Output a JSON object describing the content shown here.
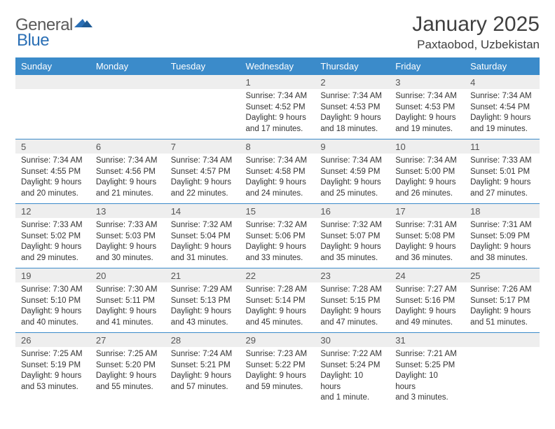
{
  "brand": {
    "word1": "General",
    "word2": "Blue",
    "text_color": "#5a5a5a",
    "accent_color": "#2a6fb5"
  },
  "title": {
    "month": "January 2025",
    "location": "Paxtaobod, Uzbekistan"
  },
  "style": {
    "header_bg": "#3b8bca",
    "header_fg": "#ffffff",
    "daynum_bg": "#eeeeee",
    "row_border": "#3b8bca",
    "body_bg": "#ffffff",
    "text_color": "#333333",
    "title_fontsize": 30,
    "location_fontsize": 17,
    "dayhead_fontsize": 13,
    "cell_fontsize": 11.5
  },
  "day_headers": [
    "Sunday",
    "Monday",
    "Tuesday",
    "Wednesday",
    "Thursday",
    "Friday",
    "Saturday"
  ],
  "weeks": [
    [
      {
        "n": "",
        "lines": []
      },
      {
        "n": "",
        "lines": []
      },
      {
        "n": "",
        "lines": []
      },
      {
        "n": "1",
        "lines": [
          "Sunrise: 7:34 AM",
          "Sunset: 4:52 PM",
          "Daylight: 9 hours",
          "and 17 minutes."
        ]
      },
      {
        "n": "2",
        "lines": [
          "Sunrise: 7:34 AM",
          "Sunset: 4:53 PM",
          "Daylight: 9 hours",
          "and 18 minutes."
        ]
      },
      {
        "n": "3",
        "lines": [
          "Sunrise: 7:34 AM",
          "Sunset: 4:53 PM",
          "Daylight: 9 hours",
          "and 19 minutes."
        ]
      },
      {
        "n": "4",
        "lines": [
          "Sunrise: 7:34 AM",
          "Sunset: 4:54 PM",
          "Daylight: 9 hours",
          "and 19 minutes."
        ]
      }
    ],
    [
      {
        "n": "5",
        "lines": [
          "Sunrise: 7:34 AM",
          "Sunset: 4:55 PM",
          "Daylight: 9 hours",
          "and 20 minutes."
        ]
      },
      {
        "n": "6",
        "lines": [
          "Sunrise: 7:34 AM",
          "Sunset: 4:56 PM",
          "Daylight: 9 hours",
          "and 21 minutes."
        ]
      },
      {
        "n": "7",
        "lines": [
          "Sunrise: 7:34 AM",
          "Sunset: 4:57 PM",
          "Daylight: 9 hours",
          "and 22 minutes."
        ]
      },
      {
        "n": "8",
        "lines": [
          "Sunrise: 7:34 AM",
          "Sunset: 4:58 PM",
          "Daylight: 9 hours",
          "and 24 minutes."
        ]
      },
      {
        "n": "9",
        "lines": [
          "Sunrise: 7:34 AM",
          "Sunset: 4:59 PM",
          "Daylight: 9 hours",
          "and 25 minutes."
        ]
      },
      {
        "n": "10",
        "lines": [
          "Sunrise: 7:34 AM",
          "Sunset: 5:00 PM",
          "Daylight: 9 hours",
          "and 26 minutes."
        ]
      },
      {
        "n": "11",
        "lines": [
          "Sunrise: 7:33 AM",
          "Sunset: 5:01 PM",
          "Daylight: 9 hours",
          "and 27 minutes."
        ]
      }
    ],
    [
      {
        "n": "12",
        "lines": [
          "Sunrise: 7:33 AM",
          "Sunset: 5:02 PM",
          "Daylight: 9 hours",
          "and 29 minutes."
        ]
      },
      {
        "n": "13",
        "lines": [
          "Sunrise: 7:33 AM",
          "Sunset: 5:03 PM",
          "Daylight: 9 hours",
          "and 30 minutes."
        ]
      },
      {
        "n": "14",
        "lines": [
          "Sunrise: 7:32 AM",
          "Sunset: 5:04 PM",
          "Daylight: 9 hours",
          "and 31 minutes."
        ]
      },
      {
        "n": "15",
        "lines": [
          "Sunrise: 7:32 AM",
          "Sunset: 5:06 PM",
          "Daylight: 9 hours",
          "and 33 minutes."
        ]
      },
      {
        "n": "16",
        "lines": [
          "Sunrise: 7:32 AM",
          "Sunset: 5:07 PM",
          "Daylight: 9 hours",
          "and 35 minutes."
        ]
      },
      {
        "n": "17",
        "lines": [
          "Sunrise: 7:31 AM",
          "Sunset: 5:08 PM",
          "Daylight: 9 hours",
          "and 36 minutes."
        ]
      },
      {
        "n": "18",
        "lines": [
          "Sunrise: 7:31 AM",
          "Sunset: 5:09 PM",
          "Daylight: 9 hours",
          "and 38 minutes."
        ]
      }
    ],
    [
      {
        "n": "19",
        "lines": [
          "Sunrise: 7:30 AM",
          "Sunset: 5:10 PM",
          "Daylight: 9 hours",
          "and 40 minutes."
        ]
      },
      {
        "n": "20",
        "lines": [
          "Sunrise: 7:30 AM",
          "Sunset: 5:11 PM",
          "Daylight: 9 hours",
          "and 41 minutes."
        ]
      },
      {
        "n": "21",
        "lines": [
          "Sunrise: 7:29 AM",
          "Sunset: 5:13 PM",
          "Daylight: 9 hours",
          "and 43 minutes."
        ]
      },
      {
        "n": "22",
        "lines": [
          "Sunrise: 7:28 AM",
          "Sunset: 5:14 PM",
          "Daylight: 9 hours",
          "and 45 minutes."
        ]
      },
      {
        "n": "23",
        "lines": [
          "Sunrise: 7:28 AM",
          "Sunset: 5:15 PM",
          "Daylight: 9 hours",
          "and 47 minutes."
        ]
      },
      {
        "n": "24",
        "lines": [
          "Sunrise: 7:27 AM",
          "Sunset: 5:16 PM",
          "Daylight: 9 hours",
          "and 49 minutes."
        ]
      },
      {
        "n": "25",
        "lines": [
          "Sunrise: 7:26 AM",
          "Sunset: 5:17 PM",
          "Daylight: 9 hours",
          "and 51 minutes."
        ]
      }
    ],
    [
      {
        "n": "26",
        "lines": [
          "Sunrise: 7:25 AM",
          "Sunset: 5:19 PM",
          "Daylight: 9 hours",
          "and 53 minutes."
        ]
      },
      {
        "n": "27",
        "lines": [
          "Sunrise: 7:25 AM",
          "Sunset: 5:20 PM",
          "Daylight: 9 hours",
          "and 55 minutes."
        ]
      },
      {
        "n": "28",
        "lines": [
          "Sunrise: 7:24 AM",
          "Sunset: 5:21 PM",
          "Daylight: 9 hours",
          "and 57 minutes."
        ]
      },
      {
        "n": "29",
        "lines": [
          "Sunrise: 7:23 AM",
          "Sunset: 5:22 PM",
          "Daylight: 9 hours",
          "and 59 minutes."
        ]
      },
      {
        "n": "30",
        "lines": [
          "Sunrise: 7:22 AM",
          "Sunset: 5:24 PM",
          "Daylight: 10 hours",
          "and 1 minute."
        ]
      },
      {
        "n": "31",
        "lines": [
          "Sunrise: 7:21 AM",
          "Sunset: 5:25 PM",
          "Daylight: 10 hours",
          "and 3 minutes."
        ]
      },
      {
        "n": "",
        "lines": []
      }
    ]
  ]
}
